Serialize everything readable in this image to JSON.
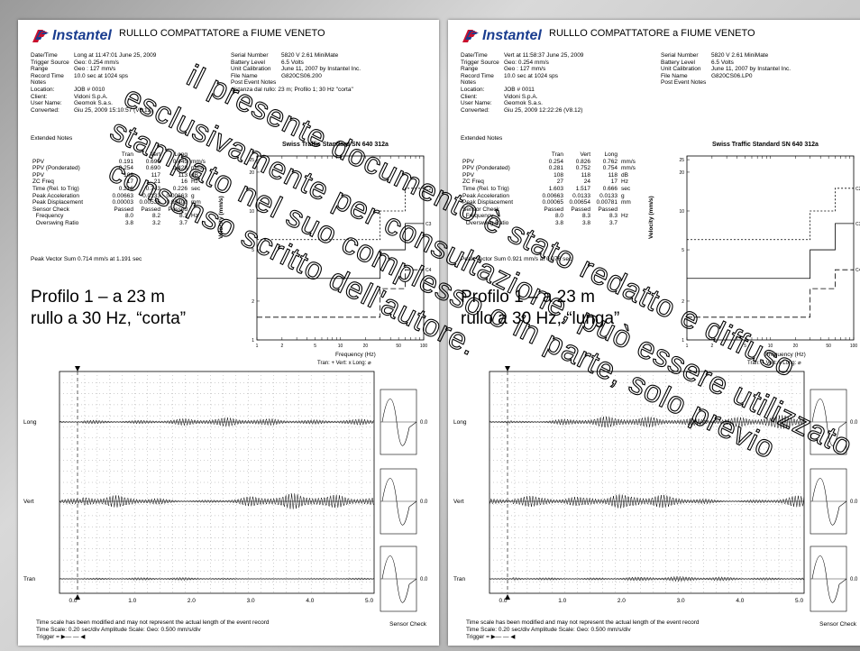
{
  "pages": [
    {
      "brand": "Instantel",
      "title": "RULLLO COMPATTATORE a FIUME VENETO",
      "left_info": [
        {
          "k": "Date/Time",
          "v": "Long at 11:47:01 June 25, 2009"
        },
        {
          "k": "Trigger Source",
          "v": "Geo: 0.254 mm/s"
        },
        {
          "k": "Range",
          "v": "Geo : 127 mm/s"
        },
        {
          "k": "Record Time",
          "v": "10.0 sec at 1024 sps"
        },
        {
          "k": "Notes",
          "v": ""
        },
        {
          "k": "Location:",
          "v": "JOB # 0010"
        },
        {
          "k": "Client:",
          "v": "Vidoni S.p.A."
        },
        {
          "k": "User Name:",
          "v": "Geomok S.a.s."
        },
        {
          "k": "Converted:",
          "v": "Giu 25, 2009 15:10:57 (V8.12)"
        }
      ],
      "right_info": [
        {
          "k": "Serial Number",
          "v": "5820 V 2.61 MiniMate"
        },
        {
          "k": "Battery Level",
          "v": "6.5 Volts"
        },
        {
          "k": "Unit Calibration",
          "v": "June 11, 2007 by Instantel Inc."
        },
        {
          "k": "File Name",
          "v": "G820CS06.200"
        },
        {
          "k": "Post Event Notes",
          "v": ""
        },
        {
          "k": "distanza dal rullo: 23 m; Profilo 1; 30 Hz \"corta\"",
          "v": ""
        }
      ],
      "extended_notes": "Extended Notes",
      "headers": [
        "Tran",
        "Vert",
        "Long"
      ],
      "rows": [
        {
          "label": "PPV",
          "v": [
            "0.191",
            "0.699",
            "0.445"
          ],
          "u": "mm/s"
        },
        {
          "label": "PPV (Ponderated)",
          "v": [
            "0.254",
            "0.690",
            "0.428"
          ],
          "u": "mm/s"
        },
        {
          "label": "PPV",
          "v": [
            "106",
            "117",
            "113"
          ],
          "u": "dB"
        },
        {
          "label": "ZC Freq",
          "v": [
            "17",
            "21",
            "16"
          ],
          "u": "Hz"
        },
        {
          "label": "Time (Rel. to Trig)",
          "v": [
            "0.216",
            "0.743",
            "0.226"
          ],
          "u": "sec"
        },
        {
          "label": "Peak Acceleration",
          "v": [
            "0.00663",
            "0.0133",
            "0.00663"
          ],
          "u": "g"
        },
        {
          "label": "Peak Displacement",
          "v": [
            "0.00003",
            "0.00536",
            "0.00400"
          ],
          "u": "mm"
        },
        {
          "label": "Sensor Check",
          "v": [
            "Passed",
            "Passed",
            "Passed"
          ],
          "u": ""
        },
        {
          "label": "  Frequency",
          "v": [
            "8.0",
            "8.2",
            "8.3"
          ],
          "u": "Hz"
        },
        {
          "label": "  Overswing Ratio",
          "v": [
            "3.8",
            "3.2",
            "3.7"
          ],
          "u": ""
        }
      ],
      "peak_vector": "Peak Vector Sum  0.714 mm/s at 1.191 sec",
      "chart_title": "Swiss Traffic Standard SN 640 312a",
      "y_axis": "Velocity (mm/s)",
      "x_axis": "Frequency (Hz)",
      "legend": "Tran: + Vert: x Long: ⌀",
      "profile_line1": "Profilo 1 – a 23 m",
      "profile_line2": "rullo a 30 Hz, “corta”",
      "ch_long": "Long",
      "ch_vert": "Vert",
      "ch_tran": "Tran",
      "zero": "0.0",
      "foot1": "Time scale has been modified and may not represent the actual length of the event record",
      "foot2": "Time Scale: 0.20 sec/div   Amplitude Scale: Geo: 0.500 mm/s/div",
      "foot3": "Trigger = ▶— — ◀",
      "sensor_check": "Sensor Check"
    },
    {
      "brand": "Instantel",
      "title": "RULLLO COMPATTATORE a FIUME VENETO",
      "left_info": [
        {
          "k": "Date/Time",
          "v": "Vert at 11:58:37 June 25, 2009"
        },
        {
          "k": "Trigger Source",
          "v": "Geo: 0.254 mm/s"
        },
        {
          "k": "Range",
          "v": "Geo : 127 mm/s"
        },
        {
          "k": "Record Time",
          "v": "10.0 sec at 1024 sps"
        },
        {
          "k": "Notes",
          "v": ""
        },
        {
          "k": "Location:",
          "v": "JOB # 0011"
        },
        {
          "k": "Client:",
          "v": "Vidoni S.p.A."
        },
        {
          "k": "User Name:",
          "v": "Geomok S.a.s."
        },
        {
          "k": "Converted:",
          "v": "Giu 25, 2009 12:22:26 (V8.12)"
        }
      ],
      "right_info": [
        {
          "k": "Serial Number",
          "v": "5820 V 2.61 MiniMate"
        },
        {
          "k": "Battery Level",
          "v": "6.5 Volts"
        },
        {
          "k": "Unit Calibration",
          "v": "June 11, 2007 by Instantel Inc."
        },
        {
          "k": "File Name",
          "v": "G820CS06.LP0"
        },
        {
          "k": "Post Event Notes",
          "v": ""
        }
      ],
      "extended_notes": "Extended Notes",
      "headers": [
        "Tran",
        "Vert",
        "Long"
      ],
      "rows": [
        {
          "label": "PPV",
          "v": [
            "0.254",
            "0.826",
            "0.762"
          ],
          "u": "mm/s"
        },
        {
          "label": "PPV (Ponderated)",
          "v": [
            "0.281",
            "0.752",
            "0.754"
          ],
          "u": "mm/s"
        },
        {
          "label": "PPV",
          "v": [
            "108",
            "118",
            "118"
          ],
          "u": "dB"
        },
        {
          "label": "ZC Freq",
          "v": [
            "27",
            "24",
            "17"
          ],
          "u": "Hz"
        },
        {
          "label": "Time (Rel. to Trig)",
          "v": [
            "1.603",
            "1.517",
            "0.666"
          ],
          "u": "sec"
        },
        {
          "label": "Peak Acceleration",
          "v": [
            "0.00663",
            "0.0133",
            "0.0133"
          ],
          "u": "g"
        },
        {
          "label": "Peak Displacement",
          "v": [
            "0.00065",
            "0.00654",
            "0.00781"
          ],
          "u": "mm"
        },
        {
          "label": "Sensor Check",
          "v": [
            "Passed",
            "Passed",
            "Passed"
          ],
          "u": ""
        },
        {
          "label": "  Frequency",
          "v": [
            "8.0",
            "8.3",
            "8.3"
          ],
          "u": "Hz"
        },
        {
          "label": "  Overswing Ratio",
          "v": [
            "3.8",
            "3.8",
            "3.7"
          ],
          "u": ""
        }
      ],
      "peak_vector": "Peak Vector Sum  0.921 mm/s at 0.976 sec",
      "chart_title": "Swiss Traffic Standard SN 640 312a",
      "y_axis": "Velocity (mm/s)",
      "x_axis": "Frequency (Hz)",
      "legend": "Tran: + Vert: x Long: ⌀",
      "profile_line1": "Profilo 1 – a 23 m",
      "profile_line2": "rullo a 30 Hz, “lunga”",
      "ch_long": "Long",
      "ch_vert": "Vert",
      "ch_tran": "Tran",
      "zero": "0.0",
      "foot1": "Time scale has been modified and may not represent the actual length of the event record",
      "foot2": "Time Scale: 0.20 sec/div   Amplitude Scale: Geo: 0.500 mm/s/div",
      "foot3": "Trigger = ▶— — ◀",
      "sensor_check": "Sensor Check"
    }
  ],
  "time_ticks": [
    "0.0",
    "1.0",
    "2.0",
    "3.0",
    "4.0",
    "5.0"
  ],
  "freq_ticks": [
    "1",
    "2",
    "5",
    "10",
    "20",
    "50",
    "100"
  ],
  "vel_ticks": [
    "25",
    "20",
    "10",
    "5",
    "2",
    "1"
  ],
  "curve_labels": [
    "C2",
    "C3",
    "C4"
  ],
  "watermark": [
    "il presente documento è stato redatto e diffuso",
    "esclusivamente per consultazione, può essere utilizzato",
    "stampato nel suo complesso o in parte, solo previo",
    "consenso scritto dell'autore."
  ],
  "colors": {
    "brand": "#1a3d8f",
    "logo_red": "#c8102e",
    "watermark": "#ffffff"
  }
}
